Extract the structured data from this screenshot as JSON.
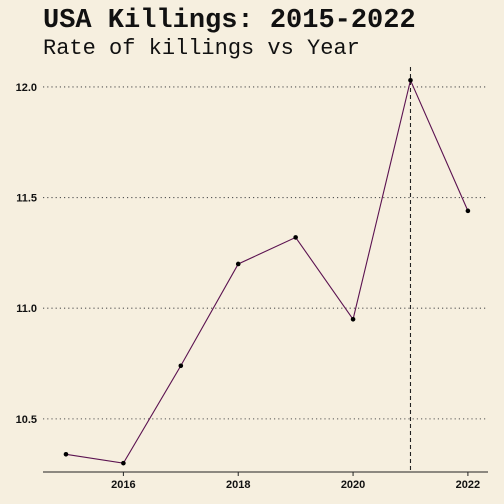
{
  "chart_data": {
    "type": "line",
    "title": "USA Killings: 2015-2022",
    "subtitle": "Rate of killings vs Year",
    "xlabel": "",
    "ylabel": "",
    "x": [
      2015,
      2016,
      2017,
      2018,
      2019,
      2020,
      2021,
      2022
    ],
    "series": [
      {
        "values": [
          10.34,
          10.3,
          10.74,
          11.2,
          11.32,
          10.95,
          12.03,
          11.44
        ]
      }
    ],
    "xlim": [
      2014.6,
      2022.35
    ],
    "ylim": [
      10.26,
      12.09
    ],
    "x_ticks": [
      2016,
      2018,
      2020,
      2022
    ],
    "x_tick_labels": [
      "2016",
      "2018",
      "2020",
      "2022"
    ],
    "y_ticks": [
      10.5,
      11.0,
      11.5,
      12.0
    ],
    "y_tick_labels": [
      "10.5",
      "11.0",
      "11.5",
      "12.0"
    ],
    "grid": "horizontal dotted",
    "reference_line": {
      "x": 2021,
      "style": "dashed"
    },
    "colors": {
      "background": "#f6efdf",
      "line": "#5b1250",
      "points": "#000000",
      "grid": "#555555",
      "axis": "#222222",
      "text": "#111111"
    }
  }
}
